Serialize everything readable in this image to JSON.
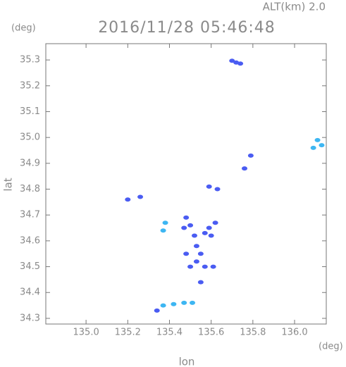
{
  "chart_data": {
    "type": "scatter",
    "title": "2016/11/28 05:46:48",
    "subtitle": "ALT(km) 2.0",
    "y_unit": "(deg)",
    "x_unit": "(deg)",
    "x_label": "lon",
    "y_label": "lat",
    "xlim": [
      134.807,
      136.152
    ],
    "ylim": [
      34.278,
      35.363
    ],
    "xticks": [
      {
        "value": 135,
        "label": "135.0"
      },
      135.2,
      135.4,
      135.6,
      135.8,
      {
        "value": 136,
        "label": "136.0"
      }
    ],
    "yticks": [
      34.3,
      34.4,
      34.5,
      34.6,
      34.7,
      34.8,
      34.9,
      {
        "value": 35,
        "label": "35.0"
      },
      35.1,
      35.2,
      35.3
    ],
    "series": [
      {
        "color": "#4a5cf2",
        "x": [
          135.7,
          135.72,
          135.74,
          135.79,
          135.76,
          135.2,
          135.26,
          135.59,
          135.63,
          135.48,
          135.47,
          135.5,
          135.52,
          135.57,
          135.6,
          135.62,
          135.59,
          135.53,
          135.55,
          135.53,
          135.57,
          135.61,
          135.5,
          135.55,
          135.48,
          135.34
        ],
        "y": [
          35.297,
          35.29,
          35.286,
          34.93,
          34.88,
          34.76,
          34.77,
          34.81,
          34.8,
          34.69,
          34.65,
          34.66,
          34.62,
          34.63,
          34.62,
          34.67,
          34.65,
          34.58,
          34.55,
          34.52,
          34.5,
          34.5,
          34.5,
          34.44,
          34.55,
          34.33
        ]
      },
      {
        "color": "#3db6f2",
        "x": [
          136.11,
          136.13,
          136.09,
          135.38,
          135.37,
          135.37,
          135.42,
          135.47,
          135.51
        ],
        "y": [
          34.99,
          34.97,
          34.96,
          34.67,
          34.64,
          34.35,
          34.355,
          34.36,
          34.36
        ]
      }
    ]
  }
}
